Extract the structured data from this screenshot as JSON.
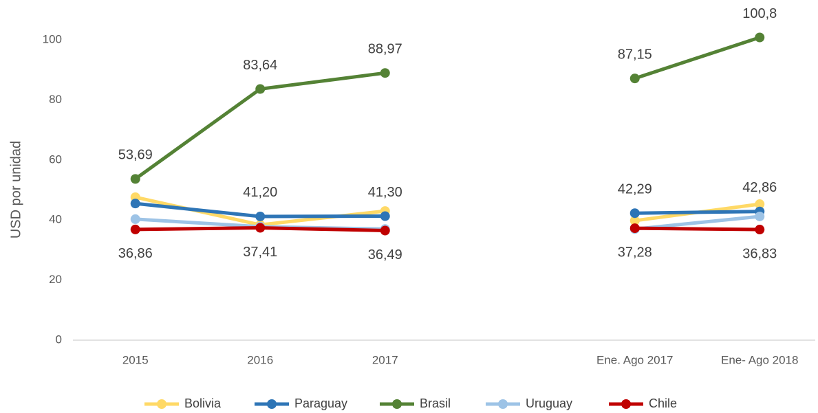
{
  "chart_data": {
    "type": "line",
    "y_label": "USD por unidad",
    "categories": [
      "2015",
      "2016",
      "2017",
      null,
      "Ene. Ago 2017",
      "Ene- Ago 2018"
    ],
    "series": [
      {
        "name": "Bolivia",
        "color": "#ffd966",
        "values": [
          47.6,
          38.4,
          43.0,
          null,
          39.8,
          45.3
        ]
      },
      {
        "name": "Paraguay",
        "color": "#2e75b6",
        "values": [
          45.5,
          41.2,
          41.3,
          null,
          42.29,
          42.86
        ],
        "value_labels": [
          null,
          "41,20",
          "41,30",
          null,
          "42,29",
          "42,86"
        ]
      },
      {
        "name": "Brasil",
        "color": "#548235",
        "values": [
          53.69,
          83.64,
          88.97,
          null,
          87.15,
          100.8
        ],
        "value_labels": [
          "53,69",
          "83,64",
          "88,97",
          null,
          "87,15",
          "100,8"
        ]
      },
      {
        "name": "Uruguay",
        "color": "#9dc3e6",
        "values": [
          40.3,
          37.8,
          37.0,
          null,
          37.0,
          41.2
        ]
      },
      {
        "name": "Chile",
        "color": "#c00000",
        "values": [
          36.86,
          37.41,
          36.49,
          null,
          37.28,
          36.83
        ],
        "value_labels": [
          "36,86",
          "37,41",
          "36,49",
          null,
          "37,28",
          "36,83"
        ]
      }
    ],
    "ylim": [
      0,
      100
    ],
    "yticks": [
      0,
      20,
      40,
      60,
      80,
      100
    ],
    "grid": false,
    "legend": "bottom"
  }
}
